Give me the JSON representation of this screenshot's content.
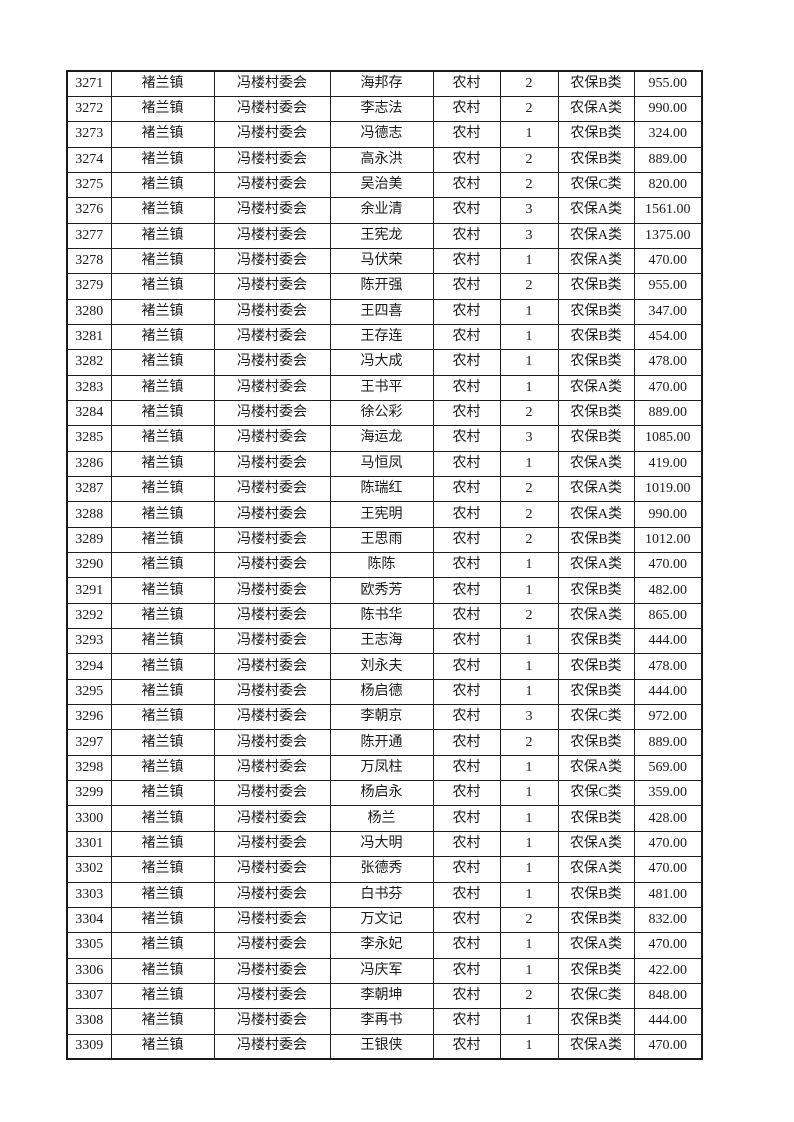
{
  "page": {
    "background": "#ffffff"
  },
  "colors": {
    "border": "#1f1f1f",
    "text": "#1a1a1a"
  },
  "table": {
    "rows": [
      [
        "3271",
        "褚兰镇",
        "冯楼村委会",
        "海邦存",
        "农村",
        "2",
        "农保B类",
        "955.00"
      ],
      [
        "3272",
        "褚兰镇",
        "冯楼村委会",
        "李志法",
        "农村",
        "2",
        "农保A类",
        "990.00"
      ],
      [
        "3273",
        "褚兰镇",
        "冯楼村委会",
        "冯德志",
        "农村",
        "1",
        "农保B类",
        "324.00"
      ],
      [
        "3274",
        "褚兰镇",
        "冯楼村委会",
        "高永洪",
        "农村",
        "2",
        "农保B类",
        "889.00"
      ],
      [
        "3275",
        "褚兰镇",
        "冯楼村委会",
        "吴治美",
        "农村",
        "2",
        "农保C类",
        "820.00"
      ],
      [
        "3276",
        "褚兰镇",
        "冯楼村委会",
        "余业清",
        "农村",
        "3",
        "农保A类",
        "1561.00"
      ],
      [
        "3277",
        "褚兰镇",
        "冯楼村委会",
        "王宪龙",
        "农村",
        "3",
        "农保A类",
        "1375.00"
      ],
      [
        "3278",
        "褚兰镇",
        "冯楼村委会",
        "马伏荣",
        "农村",
        "1",
        "农保A类",
        "470.00"
      ],
      [
        "3279",
        "褚兰镇",
        "冯楼村委会",
        "陈开强",
        "农村",
        "2",
        "农保B类",
        "955.00"
      ],
      [
        "3280",
        "褚兰镇",
        "冯楼村委会",
        "王四喜",
        "农村",
        "1",
        "农保B类",
        "347.00"
      ],
      [
        "3281",
        "褚兰镇",
        "冯楼村委会",
        "王存连",
        "农村",
        "1",
        "农保B类",
        "454.00"
      ],
      [
        "3282",
        "褚兰镇",
        "冯楼村委会",
        "冯大成",
        "农村",
        "1",
        "农保B类",
        "478.00"
      ],
      [
        "3283",
        "褚兰镇",
        "冯楼村委会",
        "王书平",
        "农村",
        "1",
        "农保A类",
        "470.00"
      ],
      [
        "3284",
        "褚兰镇",
        "冯楼村委会",
        "徐公彩",
        "农村",
        "2",
        "农保B类",
        "889.00"
      ],
      [
        "3285",
        "褚兰镇",
        "冯楼村委会",
        "海运龙",
        "农村",
        "3",
        "农保B类",
        "1085.00"
      ],
      [
        "3286",
        "褚兰镇",
        "冯楼村委会",
        "马恒凤",
        "农村",
        "1",
        "农保A类",
        "419.00"
      ],
      [
        "3287",
        "褚兰镇",
        "冯楼村委会",
        "陈瑞红",
        "农村",
        "2",
        "农保A类",
        "1019.00"
      ],
      [
        "3288",
        "褚兰镇",
        "冯楼村委会",
        "王宪明",
        "农村",
        "2",
        "农保A类",
        "990.00"
      ],
      [
        "3289",
        "褚兰镇",
        "冯楼村委会",
        "王思雨",
        "农村",
        "2",
        "农保B类",
        "1012.00"
      ],
      [
        "3290",
        "褚兰镇",
        "冯楼村委会",
        "陈陈",
        "农村",
        "1",
        "农保A类",
        "470.00"
      ],
      [
        "3291",
        "褚兰镇",
        "冯楼村委会",
        "欧秀芳",
        "农村",
        "1",
        "农保B类",
        "482.00"
      ],
      [
        "3292",
        "褚兰镇",
        "冯楼村委会",
        "陈书华",
        "农村",
        "2",
        "农保A类",
        "865.00"
      ],
      [
        "3293",
        "褚兰镇",
        "冯楼村委会",
        "王志海",
        "农村",
        "1",
        "农保B类",
        "444.00"
      ],
      [
        "3294",
        "褚兰镇",
        "冯楼村委会",
        "刘永夫",
        "农村",
        "1",
        "农保B类",
        "478.00"
      ],
      [
        "3295",
        "褚兰镇",
        "冯楼村委会",
        "杨启德",
        "农村",
        "1",
        "农保B类",
        "444.00"
      ],
      [
        "3296",
        "褚兰镇",
        "冯楼村委会",
        "李朝京",
        "农村",
        "3",
        "农保C类",
        "972.00"
      ],
      [
        "3297",
        "褚兰镇",
        "冯楼村委会",
        "陈开通",
        "农村",
        "2",
        "农保B类",
        "889.00"
      ],
      [
        "3298",
        "褚兰镇",
        "冯楼村委会",
        "万凤柱",
        "农村",
        "1",
        "农保A类",
        "569.00"
      ],
      [
        "3299",
        "褚兰镇",
        "冯楼村委会",
        "杨启永",
        "农村",
        "1",
        "农保C类",
        "359.00"
      ],
      [
        "3300",
        "褚兰镇",
        "冯楼村委会",
        "杨兰",
        "农村",
        "1",
        "农保B类",
        "428.00"
      ],
      [
        "3301",
        "褚兰镇",
        "冯楼村委会",
        "冯大明",
        "农村",
        "1",
        "农保A类",
        "470.00"
      ],
      [
        "3302",
        "褚兰镇",
        "冯楼村委会",
        "张德秀",
        "农村",
        "1",
        "农保A类",
        "470.00"
      ],
      [
        "3303",
        "褚兰镇",
        "冯楼村委会",
        "白书芬",
        "农村",
        "1",
        "农保B类",
        "481.00"
      ],
      [
        "3304",
        "褚兰镇",
        "冯楼村委会",
        "万文记",
        "农村",
        "2",
        "农保B类",
        "832.00"
      ],
      [
        "3305",
        "褚兰镇",
        "冯楼村委会",
        "李永妃",
        "农村",
        "1",
        "农保A类",
        "470.00"
      ],
      [
        "3306",
        "褚兰镇",
        "冯楼村委会",
        "冯庆军",
        "农村",
        "1",
        "农保B类",
        "422.00"
      ],
      [
        "3307",
        "褚兰镇",
        "冯楼村委会",
        "李朝坤",
        "农村",
        "2",
        "农保C类",
        "848.00"
      ],
      [
        "3308",
        "褚兰镇",
        "冯楼村委会",
        "李再书",
        "农村",
        "1",
        "农保B类",
        "444.00"
      ],
      [
        "3309",
        "褚兰镇",
        "冯楼村委会",
        "王银侠",
        "农村",
        "1",
        "农保A类",
        "470.00"
      ]
    ]
  }
}
